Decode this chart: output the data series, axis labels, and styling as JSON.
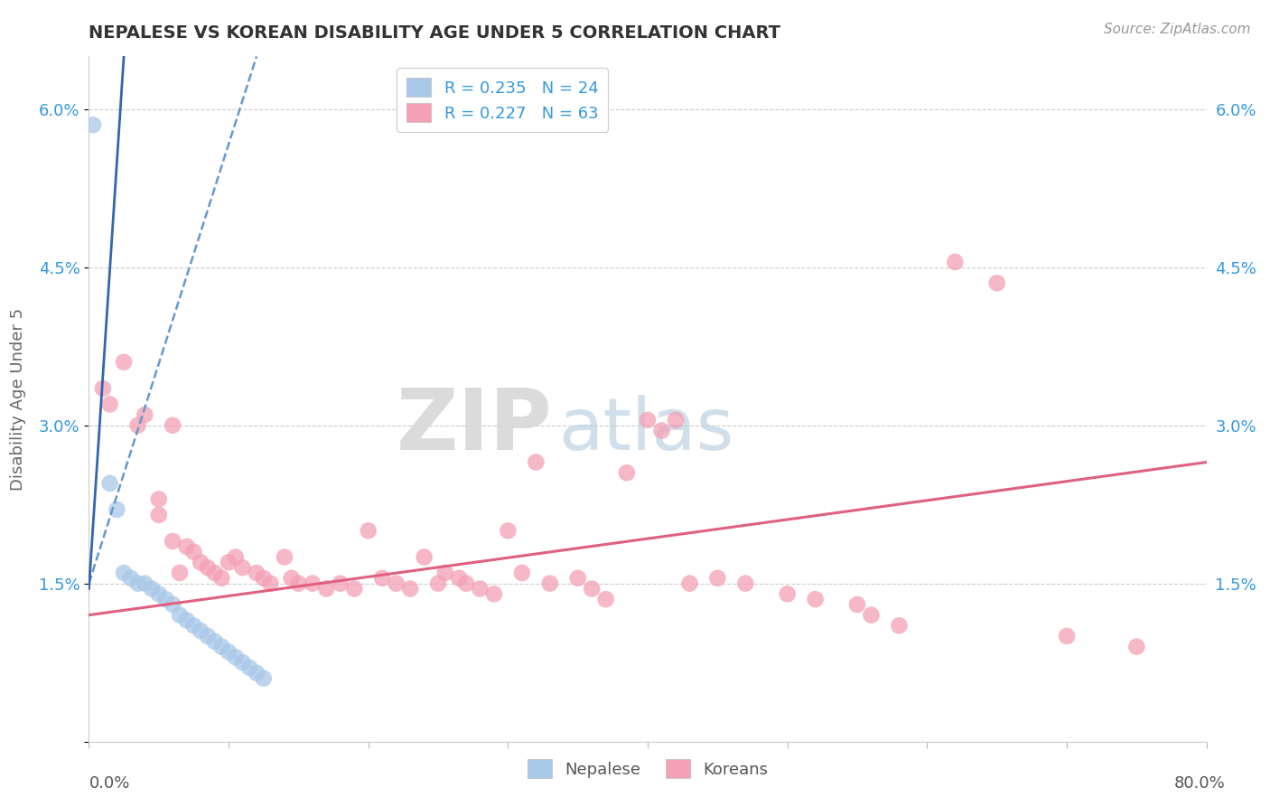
{
  "title": "NEPALESE VS KOREAN DISABILITY AGE UNDER 5 CORRELATION CHART",
  "source": "Source: ZipAtlas.com",
  "ylabel": "Disability Age Under 5",
  "xlim": [
    0.0,
    80.0
  ],
  "ylim": [
    0.0,
    6.5
  ],
  "yticks": [
    0.0,
    1.5,
    3.0,
    4.5,
    6.0
  ],
  "ytick_labels": [
    "",
    "1.5%",
    "3.0%",
    "4.5%",
    "6.0%"
  ],
  "legend_blue_R": "R = 0.235",
  "legend_blue_N": "N = 24",
  "legend_pink_R": "R = 0.227",
  "legend_pink_N": "N = 63",
  "nepalese_color": "#a8c8e8",
  "korean_color": "#f4a0b5",
  "bg_color": "#ffffff",
  "grid_color": "#cccccc",
  "watermark_zip": "ZIP",
  "watermark_atlas": "atlas",
  "nep_line_color": "#6699cc",
  "kor_line_color": "#e06080",
  "nepalese_points": [
    [
      0.3,
      5.85
    ],
    [
      1.5,
      2.45
    ],
    [
      2.0,
      2.2
    ],
    [
      2.5,
      1.6
    ],
    [
      3.0,
      1.55
    ],
    [
      3.5,
      1.5
    ],
    [
      4.0,
      1.5
    ],
    [
      4.5,
      1.45
    ],
    [
      5.0,
      1.4
    ],
    [
      5.5,
      1.35
    ],
    [
      6.0,
      1.3
    ],
    [
      6.5,
      1.2
    ],
    [
      7.0,
      1.15
    ],
    [
      7.5,
      1.1
    ],
    [
      8.0,
      1.05
    ],
    [
      8.5,
      1.0
    ],
    [
      9.0,
      0.95
    ],
    [
      9.5,
      0.9
    ],
    [
      10.0,
      0.85
    ],
    [
      10.5,
      0.8
    ],
    [
      11.0,
      0.75
    ],
    [
      11.5,
      0.7
    ],
    [
      12.0,
      0.65
    ],
    [
      12.5,
      0.6
    ]
  ],
  "korean_points": [
    [
      1.0,
      3.35
    ],
    [
      1.5,
      3.2
    ],
    [
      2.5,
      3.6
    ],
    [
      3.5,
      3.0
    ],
    [
      4.0,
      3.1
    ],
    [
      5.0,
      2.3
    ],
    [
      5.0,
      2.15
    ],
    [
      6.0,
      3.0
    ],
    [
      6.0,
      1.9
    ],
    [
      6.5,
      1.6
    ],
    [
      7.0,
      1.85
    ],
    [
      7.5,
      1.8
    ],
    [
      8.0,
      1.7
    ],
    [
      8.5,
      1.65
    ],
    [
      9.0,
      1.6
    ],
    [
      9.5,
      1.55
    ],
    [
      10.0,
      1.7
    ],
    [
      10.5,
      1.75
    ],
    [
      11.0,
      1.65
    ],
    [
      12.0,
      1.6
    ],
    [
      12.5,
      1.55
    ],
    [
      13.0,
      1.5
    ],
    [
      14.0,
      1.75
    ],
    [
      14.5,
      1.55
    ],
    [
      15.0,
      1.5
    ],
    [
      16.0,
      1.5
    ],
    [
      17.0,
      1.45
    ],
    [
      18.0,
      1.5
    ],
    [
      19.0,
      1.45
    ],
    [
      20.0,
      2.0
    ],
    [
      21.0,
      1.55
    ],
    [
      22.0,
      1.5
    ],
    [
      23.0,
      1.45
    ],
    [
      24.0,
      1.75
    ],
    [
      25.0,
      1.5
    ],
    [
      25.5,
      1.6
    ],
    [
      26.5,
      1.55
    ],
    [
      27.0,
      1.5
    ],
    [
      28.0,
      1.45
    ],
    [
      29.0,
      1.4
    ],
    [
      30.0,
      2.0
    ],
    [
      31.0,
      1.6
    ],
    [
      32.0,
      2.65
    ],
    [
      33.0,
      1.5
    ],
    [
      35.0,
      1.55
    ],
    [
      36.0,
      1.45
    ],
    [
      37.0,
      1.35
    ],
    [
      38.5,
      2.55
    ],
    [
      40.0,
      3.05
    ],
    [
      41.0,
      2.95
    ],
    [
      42.0,
      3.05
    ],
    [
      43.0,
      1.5
    ],
    [
      45.0,
      1.55
    ],
    [
      47.0,
      1.5
    ],
    [
      50.0,
      1.4
    ],
    [
      52.0,
      1.35
    ],
    [
      55.0,
      1.3
    ],
    [
      56.0,
      1.2
    ],
    [
      58.0,
      1.1
    ],
    [
      62.0,
      4.55
    ],
    [
      65.0,
      4.35
    ],
    [
      70.0,
      1.0
    ],
    [
      75.0,
      0.9
    ]
  ],
  "nep_line_x": [
    0,
    80
  ],
  "nep_line_y_start": 2.1,
  "nep_line_y_end": 6.5,
  "kor_line_x": [
    0,
    80
  ],
  "kor_line_y_start": 1.2,
  "kor_line_y_end": 2.65
}
